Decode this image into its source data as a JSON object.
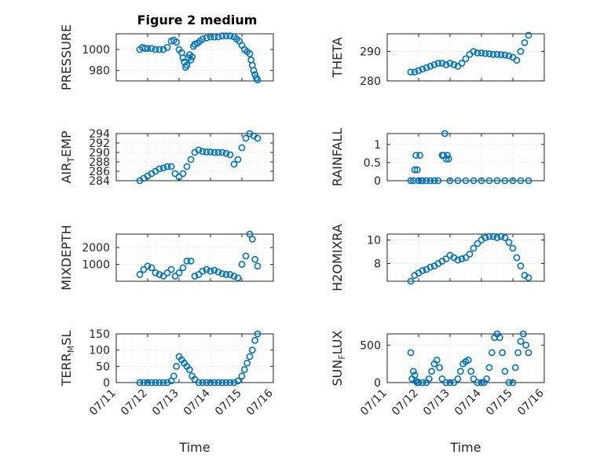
{
  "figure": {
    "title": "Figure 2 medium"
  },
  "chart_data": [
    {
      "id": "pressure",
      "type": "scatter",
      "title": "Figure 2 medium",
      "ylabel": "PRESSURE",
      "xlabel": "",
      "xlim": [
        "07/11",
        "07/16"
      ],
      "ylim": [
        970,
        1015
      ],
      "yticks": [
        980,
        1000
      ],
      "x": [
        "07/11 18:00",
        "07/11 20:00",
        "07/11 22:00",
        "07/12 00:00",
        "07/12 03:00",
        "07/12 06:00",
        "07/12 09:00",
        "07/12 12:00",
        "07/12 15:00",
        "07/12 18:00",
        "07/12 20:00",
        "07/12 22:00",
        "07/13 00:00",
        "07/13 02:00",
        "07/13 03:00",
        "07/13 04:00",
        "07/13 05:00",
        "07/13 06:00",
        "07/13 07:00",
        "07/13 08:00",
        "07/13 09:00",
        "07/13 10:00",
        "07/13 11:00",
        "07/13 12:00",
        "07/13 14:00",
        "07/13 16:00",
        "07/13 18:00",
        "07/13 21:00",
        "07/14 00:00",
        "07/14 03:00",
        "07/14 06:00",
        "07/14 09:00",
        "07/14 12:00",
        "07/14 15:00",
        "07/14 18:00",
        "07/14 20:00",
        "07/14 22:00",
        "07/15 00:00",
        "07/15 02:00",
        "07/15 04:00",
        "07/15 06:00",
        "07/15 07:00",
        "07/15 08:00",
        "07/15 09:00",
        "07/15 10:00",
        "07/15 11:00",
        "07/15 12:00"
      ],
      "y": [
        1000,
        1002,
        1001,
        1001,
        1001,
        1000,
        1000,
        1000,
        1002,
        1008,
        1009,
        1007,
        1000,
        997,
        992,
        988,
        983,
        985,
        992,
        995,
        990,
        993,
        1003,
        1005,
        1006,
        1008,
        1010,
        1011,
        1012,
        1012,
        1012,
        1013,
        1013,
        1013,
        1012,
        1010,
        1008,
        1004,
        1000,
        998,
        996,
        990,
        985,
        980,
        976,
        973,
        971
      ]
    },
    {
      "id": "theta",
      "type": "scatter",
      "ylabel": "THETA",
      "xlabel": "",
      "xlim": [
        "07/11",
        "07/16"
      ],
      "ylim": [
        280,
        296
      ],
      "yticks": [
        280,
        290
      ],
      "x": [
        "07/11 18:00",
        "07/11 21:00",
        "07/12 00:00",
        "07/12 03:00",
        "07/12 06:00",
        "07/12 09:00",
        "07/12 12:00",
        "07/12 15:00",
        "07/12 18:00",
        "07/12 21:00",
        "07/13 00:00",
        "07/13 03:00",
        "07/13 06:00",
        "07/13 09:00",
        "07/13 12:00",
        "07/13 15:00",
        "07/13 18:00",
        "07/13 21:00",
        "07/14 00:00",
        "07/14 03:00",
        "07/14 06:00",
        "07/14 09:00",
        "07/14 12:00",
        "07/14 15:00",
        "07/14 18:00",
        "07/14 21:00",
        "07/15 00:00",
        "07/15 03:00",
        "07/15 06:00",
        "07/15 09:00",
        "07/15 12:00"
      ],
      "y": [
        283,
        283,
        283.5,
        284,
        284.5,
        285,
        285.5,
        286,
        286,
        285.5,
        286,
        285.5,
        285,
        286,
        287.5,
        289,
        290,
        289.5,
        289.5,
        289.3,
        289.2,
        289,
        289,
        288.9,
        288.8,
        288.5,
        288,
        287,
        290,
        293,
        295.5
      ]
    },
    {
      "id": "airtemp",
      "type": "scatter",
      "ylabel": "AIR_TEMP",
      "xlabel": "",
      "xlim": [
        "07/11",
        "07/16"
      ],
      "ylim": [
        284,
        294
      ],
      "yticks": [
        284,
        286,
        288,
        290,
        292,
        294
      ],
      "x": [
        "07/11 18:00",
        "07/11 21:00",
        "07/12 00:00",
        "07/12 03:00",
        "07/12 06:00",
        "07/12 09:00",
        "07/12 12:00",
        "07/12 15:00",
        "07/12 18:00",
        "07/12 21:00",
        "07/13 00:00",
        "07/13 03:00",
        "07/13 06:00",
        "07/13 09:00",
        "07/13 12:00",
        "07/13 15:00",
        "07/13 18:00",
        "07/13 21:00",
        "07/14 00:00",
        "07/14 03:00",
        "07/14 06:00",
        "07/14 09:00",
        "07/14 12:00",
        "07/14 15:00",
        "07/14 18:00",
        "07/14 21:00",
        "07/15 00:00",
        "07/15 03:00",
        "07/15 06:00",
        "07/15 09:00",
        "07/15 12:00"
      ],
      "y": [
        284,
        284.5,
        285,
        285.5,
        286,
        286.5,
        286.7,
        287,
        287,
        285.5,
        284.8,
        285.5,
        287,
        288.5,
        290,
        290.5,
        290.2,
        290.1,
        290.1,
        290,
        290,
        290,
        289.8,
        289.5,
        287.5,
        288.5,
        291,
        293,
        294,
        293.5,
        293
      ]
    },
    {
      "id": "rainfall",
      "type": "scatter",
      "ylabel": "RAINFALL",
      "xlabel": "",
      "xlim": [
        "07/11",
        "07/16"
      ],
      "ylim": [
        0,
        1.3
      ],
      "yticks": [
        0,
        0.5,
        1
      ],
      "x": [
        "07/11 18:00",
        "07/11 20:00",
        "07/11 21:00",
        "07/11 22:00",
        "07/11 23:00",
        "07/12 00:00",
        "07/12 01:00",
        "07/12 02:00",
        "07/12 03:00",
        "07/12 06:00",
        "07/12 09:00",
        "07/12 12:00",
        "07/12 15:00",
        "07/12 18:00",
        "07/12 19:00",
        "07/12 20:00",
        "07/12 21:00",
        "07/12 22:00",
        "07/12 23:00",
        "07/13 00:00",
        "07/13 06:00",
        "07/13 12:00",
        "07/13 18:00",
        "07/14 00:00",
        "07/14 06:00",
        "07/14 12:00",
        "07/14 18:00",
        "07/15 00:00",
        "07/15 06:00",
        "07/15 12:00"
      ],
      "y": [
        0,
        0,
        0.3,
        0.7,
        0.3,
        0,
        0.7,
        0,
        0,
        0,
        0,
        0,
        0,
        0.7,
        0.7,
        1.3,
        0.6,
        0.7,
        0.6,
        0,
        0,
        0,
        0,
        0,
        0,
        0,
        0,
        0,
        0,
        0
      ]
    },
    {
      "id": "mixdepth",
      "type": "scatter",
      "ylabel": "MIXDEPTH",
      "xlabel": "",
      "xlim": [
        "07/11",
        "07/16"
      ],
      "ylim": [
        0,
        2800
      ],
      "yticks": [
        1000,
        2000
      ],
      "x": [
        "07/11 18:00",
        "07/11 21:00",
        "07/12 00:00",
        "07/12 03:00",
        "07/12 06:00",
        "07/12 09:00",
        "07/12 12:00",
        "07/12 15:00",
        "07/12 18:00",
        "07/12 21:00",
        "07/13 00:00",
        "07/13 03:00",
        "07/13 06:00",
        "07/13 09:00",
        "07/13 12:00",
        "07/13 15:00",
        "07/13 18:00",
        "07/13 21:00",
        "07/14 00:00",
        "07/14 03:00",
        "07/14 06:00",
        "07/14 09:00",
        "07/14 12:00",
        "07/14 15:00",
        "07/14 18:00",
        "07/14 21:00",
        "07/15 00:00",
        "07/15 03:00",
        "07/15 06:00",
        "07/15 08:00",
        "07/15 10:00",
        "07/15 12:00"
      ],
      "y": [
        400,
        700,
        900,
        800,
        500,
        400,
        300,
        500,
        700,
        300,
        500,
        800,
        1200,
        1200,
        300,
        400,
        600,
        700,
        600,
        650,
        550,
        450,
        400,
        400,
        300,
        200,
        1000,
        1500,
        2800,
        2500,
        1300,
        900
      ]
    },
    {
      "id": "h2omixra",
      "type": "scatter",
      "ylabel": "H2OMIXRA",
      "xlabel": "",
      "xlim": [
        "07/11",
        "07/16"
      ],
      "ylim": [
        6.5,
        10.5
      ],
      "yticks": [
        8,
        10
      ],
      "x": [
        "07/11 18:00",
        "07/11 21:00",
        "07/12 00:00",
        "07/12 03:00",
        "07/12 06:00",
        "07/12 09:00",
        "07/12 12:00",
        "07/12 15:00",
        "07/12 18:00",
        "07/12 21:00",
        "07/13 00:00",
        "07/13 03:00",
        "07/13 06:00",
        "07/13 09:00",
        "07/13 12:00",
        "07/13 15:00",
        "07/13 18:00",
        "07/13 21:00",
        "07/14 00:00",
        "07/14 03:00",
        "07/14 06:00",
        "07/14 09:00",
        "07/14 12:00",
        "07/14 15:00",
        "07/14 18:00",
        "07/14 21:00",
        "07/15 00:00",
        "07/15 03:00",
        "07/15 06:00",
        "07/15 09:00",
        "07/15 12:00"
      ],
      "y": [
        6.5,
        7,
        7.2,
        7.4,
        7.5,
        7.7,
        7.8,
        8,
        8.2,
        8.4,
        8.7,
        8.5,
        8.3,
        8.4,
        8.5,
        8.8,
        9.3,
        9.7,
        10,
        10.2,
        10.3,
        10.3,
        10.2,
        10.3,
        10.2,
        9.8,
        9.3,
        8.5,
        7.8,
        7,
        6.8
      ]
    },
    {
      "id": "terrmsl",
      "type": "scatter",
      "ylabel": "TERR_MSL",
      "xlabel": "Time",
      "xlim": [
        "07/11",
        "07/16"
      ],
      "ylim": [
        0,
        150
      ],
      "yticks": [
        0,
        50,
        100,
        150
      ],
      "xticklabels": [
        "07/11",
        "07/12",
        "07/13",
        "07/14",
        "07/15",
        "07/16"
      ],
      "x": [
        "07/11 18:00",
        "07/11 21:00",
        "07/12 00:00",
        "07/12 03:00",
        "07/12 06:00",
        "07/12 09:00",
        "07/12 12:00",
        "07/12 15:00",
        "07/12 18:00",
        "07/12 20:00",
        "07/12 22:00",
        "07/13 00:00",
        "07/13 02:00",
        "07/13 04:00",
        "07/13 06:00",
        "07/13 08:00",
        "07/13 10:00",
        "07/13 12:00",
        "07/13 15:00",
        "07/13 18:00",
        "07/13 21:00",
        "07/14 00:00",
        "07/14 03:00",
        "07/14 06:00",
        "07/14 09:00",
        "07/14 12:00",
        "07/14 15:00",
        "07/14 18:00",
        "07/14 21:00",
        "07/15 00:00",
        "07/15 02:00",
        "07/15 04:00",
        "07/15 06:00",
        "07/15 08:00",
        "07/15 10:00",
        "07/15 12:00"
      ],
      "y": [
        0,
        0,
        0,
        0,
        0,
        0,
        0,
        0,
        5,
        20,
        50,
        80,
        70,
        60,
        50,
        40,
        20,
        10,
        0,
        0,
        0,
        0,
        0,
        0,
        0,
        0,
        0,
        0,
        5,
        20,
        40,
        60,
        80,
        100,
        130,
        150
      ]
    },
    {
      "id": "sunflux",
      "type": "scatter",
      "ylabel": "SUN_FLUX",
      "xlabel": "Time",
      "xlim": [
        "07/11",
        "07/16"
      ],
      "ylim": [
        0,
        650
      ],
      "yticks": [
        0,
        500
      ],
      "xticklabels": [
        "07/11",
        "07/12",
        "07/13",
        "07/14",
        "07/15",
        "07/16"
      ],
      "x": [
        "07/11 18:00",
        "07/11 19:00",
        "07/11 20:00",
        "07/11 21:00",
        "07/11 22:00",
        "07/11 23:00",
        "07/12 00:00",
        "07/12 03:00",
        "07/12 06:00",
        "07/12 08:00",
        "07/12 10:00",
        "07/12 12:00",
        "07/12 14:00",
        "07/12 16:00",
        "07/12 18:00",
        "07/12 21:00",
        "07/13 00:00",
        "07/13 03:00",
        "07/13 06:00",
        "07/13 08:00",
        "07/13 10:00",
        "07/13 12:00",
        "07/13 14:00",
        "07/13 16:00",
        "07/13 18:00",
        "07/13 21:00",
        "07/14 00:00",
        "07/14 02:00",
        "07/14 04:00",
        "07/14 06:00",
        "07/14 08:00",
        "07/14 10:00",
        "07/14 12:00",
        "07/14 14:00",
        "07/14 16:00",
        "07/14 18:00",
        "07/14 21:00",
        "07/15 00:00",
        "07/15 02:00",
        "07/15 04:00",
        "07/15 06:00",
        "07/15 08:00",
        "07/15 10:00",
        "07/15 12:00"
      ],
      "y": [
        400,
        50,
        150,
        100,
        20,
        0,
        0,
        0,
        0,
        50,
        150,
        250,
        300,
        200,
        50,
        0,
        0,
        0,
        50,
        150,
        250,
        280,
        300,
        150,
        50,
        0,
        0,
        0,
        50,
        200,
        400,
        600,
        650,
        600,
        400,
        150,
        0,
        0,
        200,
        400,
        550,
        650,
        500,
        400
      ]
    }
  ]
}
